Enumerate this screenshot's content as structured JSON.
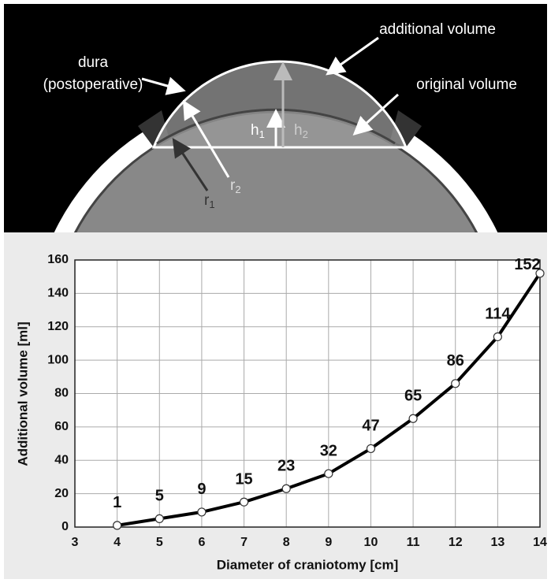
{
  "diagram": {
    "additional_label": "additional volume",
    "dura_label": [
      "dura",
      "(postoperative)"
    ],
    "original_label": "original volume",
    "h1": {
      "base": "h",
      "sub": "1"
    },
    "h2": {
      "base": "h",
      "sub": "2"
    },
    "r1": {
      "base": "r",
      "sub": "1"
    },
    "r2": {
      "base": "r",
      "sub": "2"
    }
  },
  "chart_data": {
    "type": "line",
    "x": [
      4,
      5,
      6,
      7,
      8,
      9,
      10,
      11,
      12,
      13,
      14
    ],
    "values": [
      1,
      5,
      9,
      15,
      23,
      32,
      47,
      65,
      86,
      114,
      152
    ],
    "color": "#000000",
    "xlabel": "Diameter of craniotomy  [cm]",
    "ylabel": "Additional volume  [ml]",
    "xlim": [
      3,
      14
    ],
    "xticks": [
      3,
      4,
      5,
      6,
      7,
      8,
      9,
      10,
      11,
      12,
      13,
      14
    ],
    "ylim": [
      0,
      160
    ],
    "yticks": [
      0,
      20,
      40,
      60,
      80,
      100,
      120,
      140,
      160
    ],
    "grid": true
  }
}
